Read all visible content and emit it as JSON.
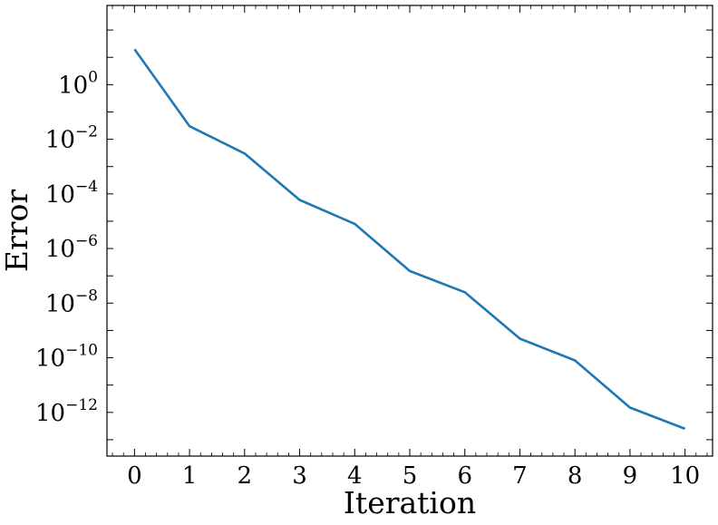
{
  "chart_data": {
    "type": "line",
    "title": "",
    "xlabel": "Iteration",
    "ylabel": "Error",
    "xlim": [
      -0.5,
      10.5
    ],
    "ylim_log10": [
      -13.6,
      2.9
    ],
    "yscale": "log",
    "grid": false,
    "x_ticks": [
      0,
      1,
      2,
      3,
      4,
      5,
      6,
      7,
      8,
      9,
      10
    ],
    "y_ticks": [
      {
        "base": "10",
        "exp": "0",
        "log10": 0
      },
      {
        "base": "10",
        "exp": "−2",
        "log10": -2
      },
      {
        "base": "10",
        "exp": "−4",
        "log10": -4
      },
      {
        "base": "10",
        "exp": "−6",
        "log10": -6
      },
      {
        "base": "10",
        "exp": "−8",
        "log10": -8
      },
      {
        "base": "10",
        "exp": "−10",
        "log10": -10
      },
      {
        "base": "10",
        "exp": "−12",
        "log10": -12
      }
    ],
    "series": [
      {
        "color": "#1f77b4",
        "x": [
          0,
          1,
          2,
          3,
          4,
          5,
          6,
          7,
          8,
          9,
          10
        ],
        "y": [
          20,
          0.03,
          0.003,
          6e-05,
          8e-06,
          1.5e-07,
          2.5e-08,
          5e-10,
          8e-11,
          1.5e-12,
          2.5e-13
        ]
      }
    ]
  }
}
